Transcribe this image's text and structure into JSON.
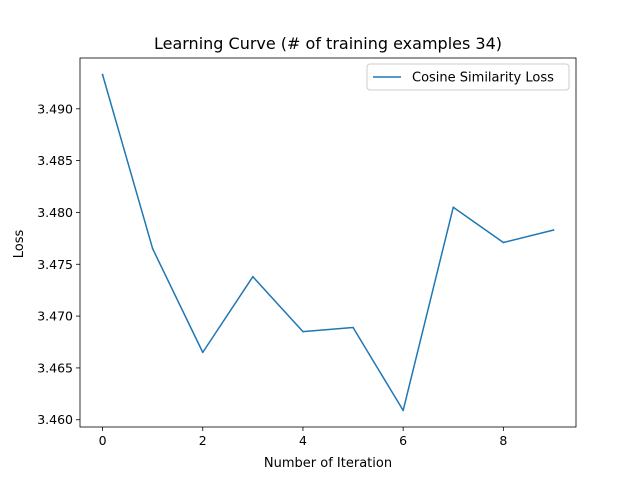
{
  "chart_data": {
    "type": "line",
    "title": "Learning Curve (# of training examples 34)",
    "xlabel": "Number of Iteration",
    "ylabel": "Loss",
    "x": [
      0,
      1,
      2,
      3,
      4,
      5,
      6,
      7,
      8,
      9
    ],
    "series": [
      {
        "name": "Cosine Similarity Loss",
        "color": "#1f77b4",
        "values": [
          3.4933,
          3.4765,
          3.4665,
          3.4738,
          3.4685,
          3.4689,
          3.4609,
          3.4805,
          3.4771,
          3.4783
        ]
      }
    ],
    "xlim": [
      -0.45,
      9.45
    ],
    "ylim": [
      3.4593,
      3.4949
    ],
    "xticks": [
      0,
      2,
      4,
      6,
      8
    ],
    "yticks": [
      3.46,
      3.465,
      3.47,
      3.475,
      3.48,
      3.485,
      3.49
    ],
    "xtick_labels": [
      "0",
      "2",
      "4",
      "6",
      "8"
    ],
    "ytick_labels": [
      "3.460",
      "3.465",
      "3.470",
      "3.475",
      "3.480",
      "3.485",
      "3.490"
    ],
    "grid": false,
    "legend_position": "top-right"
  }
}
